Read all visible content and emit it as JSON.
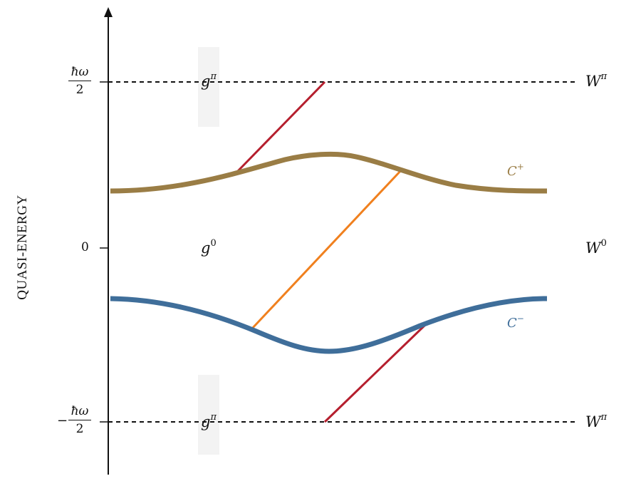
{
  "axis": {
    "ylabel": "QUASI-ENERGY",
    "tick_top_num": "ħω",
    "tick_top_den": "2",
    "tick_zero": "0",
    "tick_bottom_minus": "−",
    "tick_bottom_num": "ħω",
    "tick_bottom_den": "2"
  },
  "gap_labels": {
    "g_pi_top": "g",
    "g_pi_top_sup": "π",
    "g_zero": "g",
    "g_zero_sup": "0",
    "g_pi_bottom": "g",
    "g_pi_bottom_sup": "π"
  },
  "winding_labels": {
    "w_pi_top": "W",
    "w_pi_top_sup": "π",
    "w_zero": "W",
    "w_zero_sup": "0",
    "w_pi_bottom": "W",
    "w_pi_bottom_sup": "π"
  },
  "bands": {
    "upper": {
      "label": "C",
      "sup": "+",
      "color": "#9a7d45"
    },
    "lower": {
      "label": "C",
      "sup": "−",
      "color": "#3f6e9a"
    }
  },
  "colors": {
    "edge_state_pi": "#b51f2e",
    "edge_state_zero": "#f0801e",
    "axis": "#111111"
  }
}
